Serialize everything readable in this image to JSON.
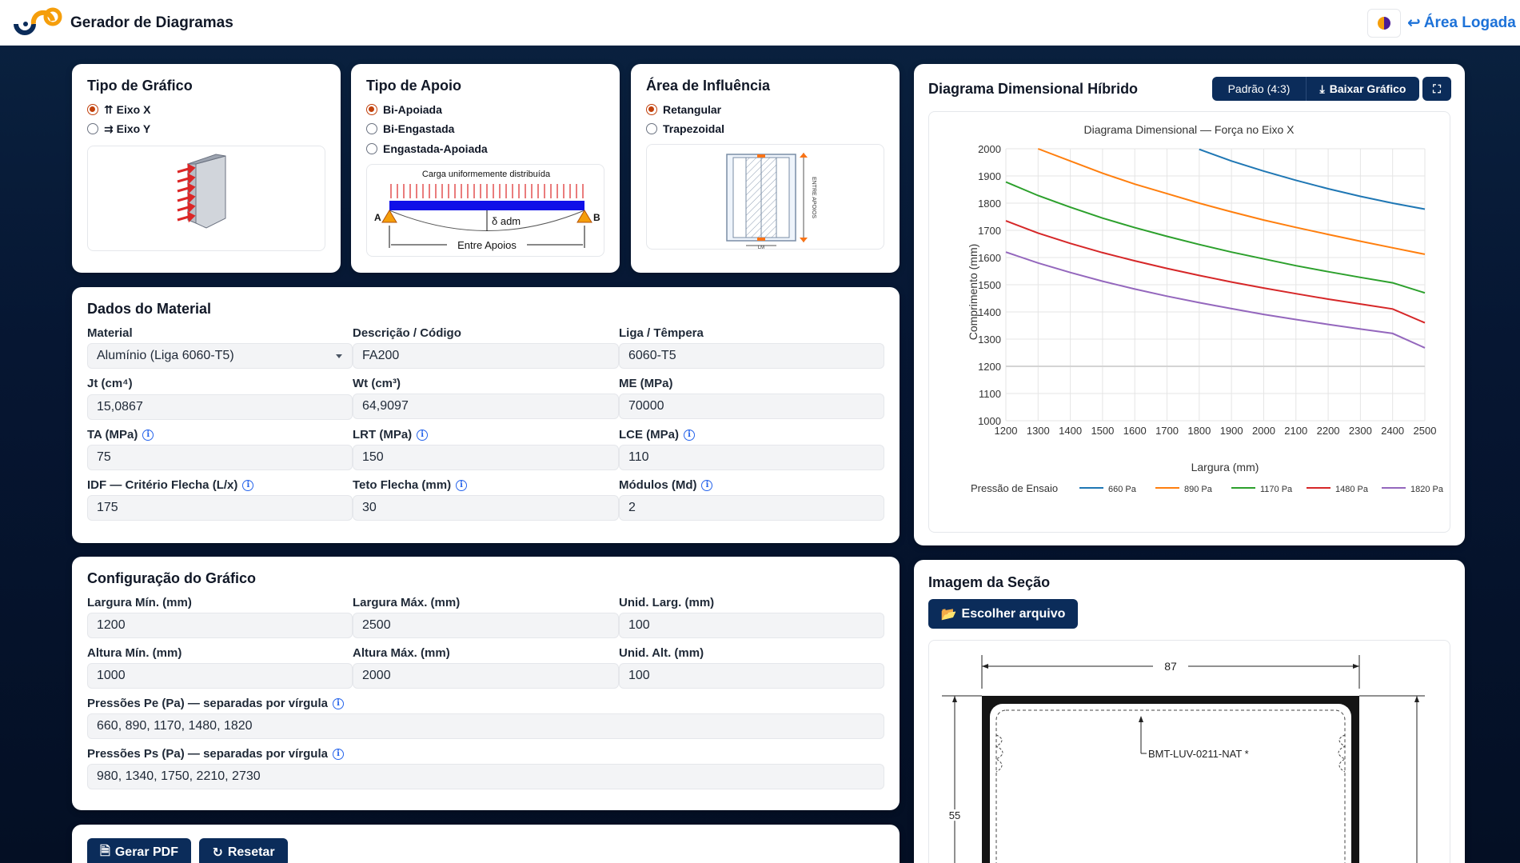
{
  "header": {
    "app_title": "Gerador de Diagramas",
    "area_logada": "Área Logada"
  },
  "tipo_grafico": {
    "title": "Tipo de Gráfico",
    "options": [
      {
        "label": "⇈ Eixo X",
        "checked": true
      },
      {
        "label": "⇉ Eixo Y",
        "checked": false
      }
    ]
  },
  "tipo_apoio": {
    "title": "Tipo de Apoio",
    "options": [
      {
        "label": "Bi-Apoiada",
        "checked": true
      },
      {
        "label": "Bi-Engastada",
        "checked": false
      },
      {
        "label": "Engastada-Apoiada",
        "checked": false
      }
    ],
    "diagram": {
      "load_label": "Carga uniformemente distribuída",
      "deflection_label": "δ adm",
      "span_label": "Entre Apoios",
      "left": "A",
      "right": "B"
    }
  },
  "area_influencia": {
    "title": "Área de Influência",
    "options": [
      {
        "label": "Retangular",
        "checked": true
      },
      {
        "label": "Trapezoidal",
        "checked": false
      }
    ],
    "diagram": {
      "side_label": "ENTRE APOIOS",
      "bottom_label": "LM"
    }
  },
  "material": {
    "title": "Dados do Material",
    "fields": {
      "material": {
        "label": "Material",
        "value": "Alumínio (Liga 6060-T5)"
      },
      "descricao": {
        "label": "Descrição / Código",
        "value": "FA200"
      },
      "liga": {
        "label": "Liga / Têmpera",
        "value": "6060-T5"
      },
      "jt": {
        "label": "Jt (cm⁴)",
        "value": "15,0867"
      },
      "wt": {
        "label": "Wt (cm³)",
        "value": "64,9097"
      },
      "me": {
        "label": "ME (MPa)",
        "value": "70000"
      },
      "ta": {
        "label": "TA (MPa)",
        "value": "75"
      },
      "lrt": {
        "label": "LRT (MPa)",
        "value": "150"
      },
      "lce": {
        "label": "LCE (MPa)",
        "value": "110"
      },
      "idf": {
        "label": "IDF — Critério Flecha (L/x)",
        "value": "175"
      },
      "teto": {
        "label": "Teto Flecha (mm)",
        "value": "30"
      },
      "modulos": {
        "label": "Módulos (Md)",
        "value": "2"
      }
    }
  },
  "config": {
    "title": "Configuração do Gráfico",
    "fields": {
      "larg_min": {
        "label": "Largura Mín. (mm)",
        "value": "1200"
      },
      "larg_max": {
        "label": "Largura Máx. (mm)",
        "value": "2500"
      },
      "unid_larg": {
        "label": "Unid. Larg. (mm)",
        "value": "100"
      },
      "alt_min": {
        "label": "Altura Mín. (mm)",
        "value": "1000"
      },
      "alt_max": {
        "label": "Altura Máx. (mm)",
        "value": "2000"
      },
      "unid_alt": {
        "label": "Unid. Alt. (mm)",
        "value": "100"
      },
      "pe": {
        "label": "Pressões Pe (Pa) — separadas por vírgula",
        "value": "660, 890, 1170, 1480, 1820"
      },
      "ps": {
        "label": "Pressões Ps (Pa) — separadas por vírgula",
        "value": "980, 1340, 1750, 2210, 2730"
      }
    }
  },
  "actions": {
    "pdf_label": "Gerar PDF",
    "reset_label": "Resetar"
  },
  "chart_card": {
    "title": "Diagrama Dimensional Híbrido",
    "aspect_label": "Padrão (4:3)",
    "download_label": "Baixar Gráfico"
  },
  "chart_data": {
    "type": "line",
    "title": "Diagrama Dimensional — Força no Eixo X",
    "xlabel": "Largura (mm)",
    "ylabel": "Comprimento (mm)",
    "xlim": [
      1200,
      2500
    ],
    "ylim": [
      1000,
      2000
    ],
    "x_ticks": [
      1200,
      1300,
      1400,
      1500,
      1600,
      1700,
      1800,
      1900,
      2000,
      2100,
      2200,
      2300,
      2400,
      2500
    ],
    "y_ticks": [
      1000,
      1100,
      1200,
      1300,
      1400,
      1500,
      1600,
      1700,
      1800,
      1900,
      2000
    ],
    "grid": true,
    "legend_title": "Pressão de Ensaio",
    "legend_position": "bottom",
    "x": [
      1200,
      1300,
      1400,
      1500,
      1600,
      1700,
      1800,
      1900,
      2000,
      2100,
      2200,
      2300,
      2400,
      2500
    ],
    "series": [
      {
        "name": "660 Pa",
        "color": "#1f77b4",
        "values": [
          null,
          null,
          null,
          null,
          null,
          null,
          1998,
          1955,
          1918,
          1884,
          1853,
          1825,
          1800,
          1778
        ]
      },
      {
        "name": "890 Pa",
        "color": "#ff7f0e",
        "values": [
          null,
          2002,
          1955,
          1910,
          1870,
          1835,
          1800,
          1768,
          1738,
          1711,
          1685,
          1660,
          1636,
          1612
        ]
      },
      {
        "name": "1170 Pa",
        "color": "#2ca02c",
        "values": [
          1878,
          1828,
          1785,
          1745,
          1710,
          1678,
          1648,
          1620,
          1595,
          1570,
          1548,
          1527,
          1507,
          1470
        ]
      },
      {
        "name": "1480 Pa",
        "color": "#d62728",
        "values": [
          1735,
          1690,
          1652,
          1618,
          1588,
          1560,
          1534,
          1510,
          1488,
          1467,
          1447,
          1429,
          1411,
          1360
        ]
      },
      {
        "name": "1820 Pa",
        "color": "#9467bd",
        "values": [
          1620,
          1580,
          1545,
          1513,
          1484,
          1458,
          1434,
          1412,
          1391,
          1372,
          1354,
          1337,
          1321,
          1268
        ]
      }
    ]
  },
  "section_card": {
    "title": "Imagem da Seção",
    "choose_label": "Escolher arquivo",
    "dim_width": "87",
    "dim_height": "55",
    "part_label": "BMT-LUV-0211-NAT *"
  }
}
